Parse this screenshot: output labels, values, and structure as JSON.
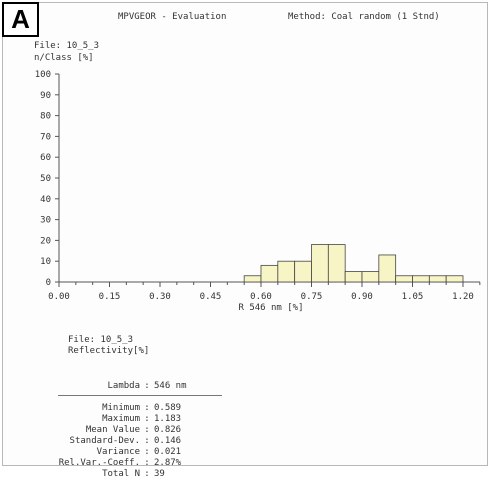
{
  "panel_label": "A",
  "header": {
    "app": "MPVGEOR - Evaluation",
    "method": "Method: Coal random (1 Stnd)"
  },
  "chart_data": {
    "type": "bar",
    "file": "File: 10_5_3",
    "ylabel": "n/Class [%]",
    "xlabel": "R 546 nm [%]",
    "xlim": [
      0.0,
      1.25
    ],
    "ylim": [
      0,
      100
    ],
    "y_ticks": [
      0,
      10,
      20,
      30,
      40,
      50,
      60,
      70,
      80,
      90,
      100
    ],
    "x_tick_labels": [
      "0.00",
      "0.15",
      "0.30",
      "0.45",
      "0.60",
      "0.75",
      "0.90",
      "1.05",
      "1.20"
    ],
    "bin_width": 0.05,
    "bins": [
      {
        "x0": 0.55,
        "value": 3
      },
      {
        "x0": 0.6,
        "value": 8
      },
      {
        "x0": 0.65,
        "value": 10
      },
      {
        "x0": 0.7,
        "value": 10
      },
      {
        "x0": 0.75,
        "value": 18
      },
      {
        "x0": 0.8,
        "value": 18
      },
      {
        "x0": 0.85,
        "value": 5
      },
      {
        "x0": 0.9,
        "value": 5
      },
      {
        "x0": 0.95,
        "value": 13
      },
      {
        "x0": 1.0,
        "value": 3
      },
      {
        "x0": 1.05,
        "value": 3
      },
      {
        "x0": 1.1,
        "value": 3
      },
      {
        "x0": 1.15,
        "value": 3
      }
    ],
    "bar_color": "#f7f5c6"
  },
  "summary": {
    "file": "File: 10_5_3",
    "quantity": "Reflectivity[%]",
    "lambda_label": "Lambda",
    "lambda_value": "546  nm",
    "rows": [
      {
        "key": "Minimum",
        "value": "0.589"
      },
      {
        "key": "Maximum",
        "value": "1.183"
      },
      {
        "key": "Mean Value",
        "value": "0.826"
      },
      {
        "key": "Standard-Dev.",
        "value": "0.146"
      },
      {
        "key": "Variance",
        "value": "0.021"
      },
      {
        "key": "Rel.Var.-Coeff.",
        "value": "2.87%"
      },
      {
        "key": "Total N",
        "value": "39"
      }
    ]
  }
}
